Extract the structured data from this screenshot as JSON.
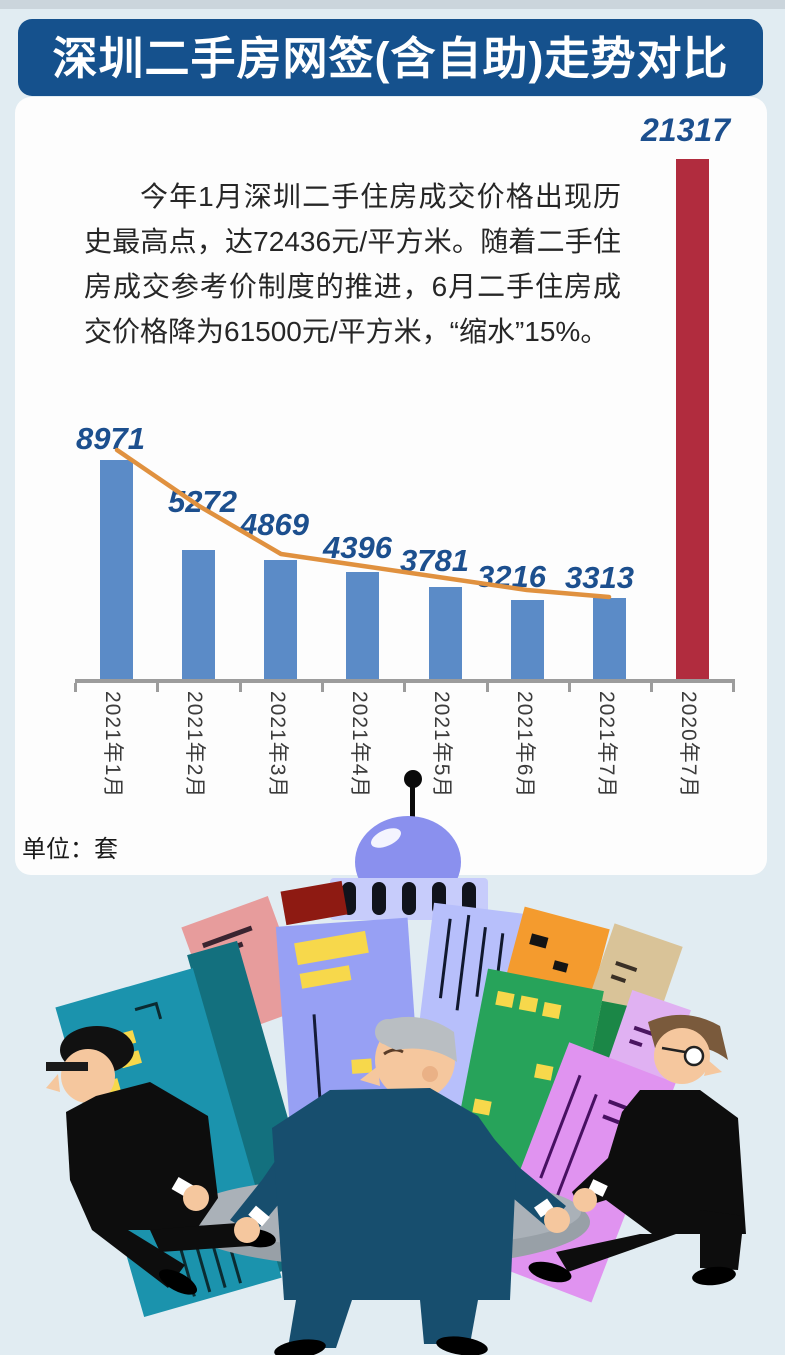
{
  "header": {
    "title": "深圳二手房网签(含自助)走势对比"
  },
  "intro": {
    "text": "今年1月深圳二手住房成交价格出现历史最高点，达72436元/平方米。随着二手住房成交参考价制度的推进，6月二手住房成交价格降为61500元/平方米，“缩水”15%。"
  },
  "chart_data": {
    "type": "bar",
    "title": "深圳二手房网签(含自助)走势对比",
    "categories": [
      "2021年1月",
      "2021年2月",
      "2021年3月",
      "2021年4月",
      "2021年5月",
      "2021年6月",
      "2021年7月",
      "2020年7月"
    ],
    "values": [
      8971,
      5272,
      4869,
      4396,
      3781,
      3216,
      3313,
      21317
    ],
    "bar_colors": [
      "#5b8bc7",
      "#5b8bc7",
      "#5b8bc7",
      "#5b8bc7",
      "#5b8bc7",
      "#5b8bc7",
      "#5b8bc7",
      "#b12c3e"
    ],
    "value_label_color": "#1c4f8e",
    "unit_label": "单位：套",
    "xlabel": "",
    "ylabel": "套",
    "ylim": [
      0,
      21317
    ],
    "grid": false,
    "legend": "none",
    "axis_color": "#9c9c9c",
    "trend_line": {
      "type": "line",
      "color": "#e0913f",
      "categories": [
        "2021年1月",
        "2021年2月",
        "2021年3月",
        "2021年4月",
        "2021年5月",
        "2021年6月",
        "2021年7月"
      ],
      "values": [
        8971,
        5272,
        4869,
        4396,
        3781,
        3216,
        3313
      ]
    }
  },
  "illustration": {
    "alt": "三名商人抬着托盘，托盘上是一组彩色高楼（象征楼市）",
    "palette": [
      "#1b93ad",
      "#e79c9c",
      "#8e1a12",
      "#97a0f4",
      "#8a90ee",
      "#b7bffb",
      "#f49b2e",
      "#d9c398",
      "#27a35a",
      "#e093f0",
      "#99a1a8"
    ]
  }
}
